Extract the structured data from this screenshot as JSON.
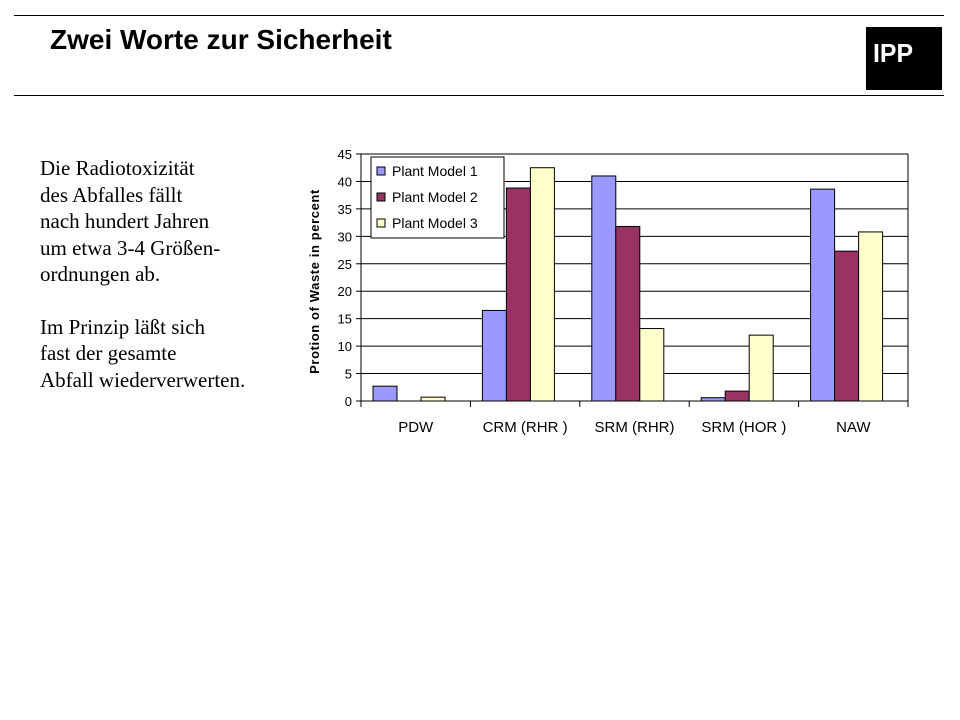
{
  "slide": {
    "title": "Zwei Worte zur Sicherheit",
    "logo_text": "IPP"
  },
  "body_text": {
    "paragraphs": [
      [
        "Die Radiotoxizität",
        "des Abfalles fällt",
        "nach hundert Jahren",
        "um etwa 3-4 Größen-",
        "ordnungen ab."
      ],
      [
        "Im Prinzip läßt sich",
        "fast der gesamte",
        "Abfall wiederverwerten."
      ]
    ]
  },
  "chart_data": {
    "type": "bar",
    "categories": [
      "PDW",
      "CRM (RHR )",
      "SRM (RHR)",
      "SRM (HOR )",
      "NAW"
    ],
    "series": [
      {
        "name": "Plant Model 1",
        "color": "#9999ff",
        "values": [
          2.7,
          16.5,
          41.0,
          0.6,
          38.6
        ]
      },
      {
        "name": "Plant Model 2",
        "color": "#993366",
        "values": [
          0.0,
          38.8,
          31.8,
          1.8,
          27.3
        ]
      },
      {
        "name": "Plant Model 3",
        "color": "#ffffcc",
        "values": [
          0.7,
          42.5,
          13.2,
          12.0,
          30.8
        ]
      }
    ],
    "ylabel": "Protion of Waste in percent",
    "ylim": [
      0,
      45
    ],
    "yticks": [
      0,
      5,
      10,
      15,
      20,
      25,
      30,
      35,
      40,
      45
    ],
    "grid": true,
    "legend_position": "top-left"
  }
}
